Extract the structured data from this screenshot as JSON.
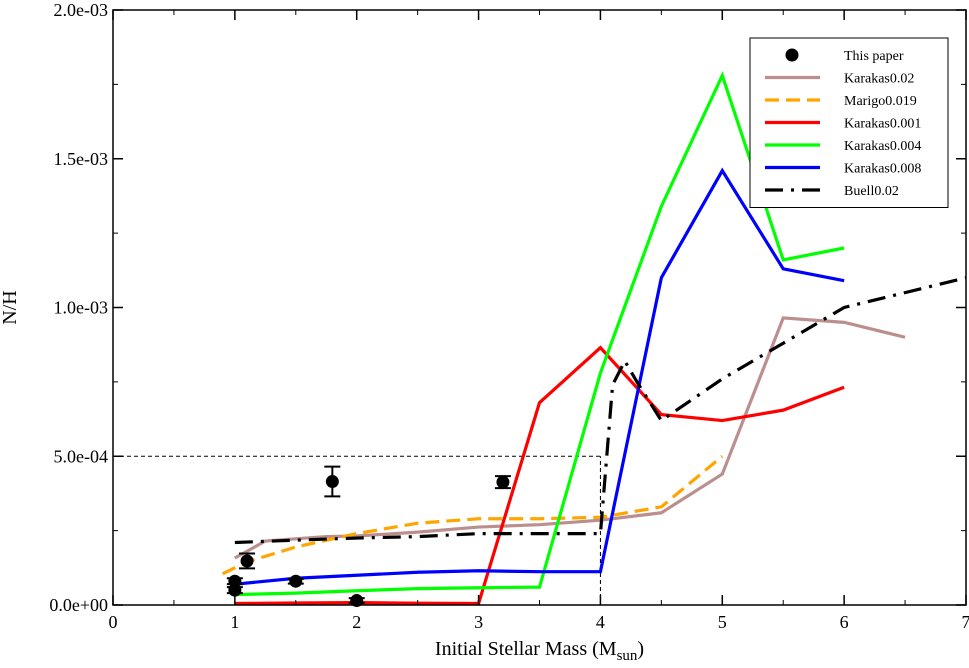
{
  "chart_data": {
    "type": "line",
    "xlabel": "Initial Stellar Mass (M",
    "xlabel_sub": "sun",
    "xlabel_end": ")",
    "ylabel": "N/H",
    "xlim": [
      0,
      7
    ],
    "ylim": [
      0,
      0.002
    ],
    "x_ticks": [
      0,
      1,
      2,
      3,
      4,
      5,
      6,
      7
    ],
    "x_tick_labels": [
      "0",
      "1",
      "2",
      "3",
      "4",
      "5",
      "6",
      "7"
    ],
    "y_ticks": [
      0,
      0.0005,
      0.001,
      0.0015,
      0.002
    ],
    "y_tick_labels": [
      "0.0e+00",
      "5.0e-04",
      "1.0e-03",
      "1.5e-03",
      "2.0e-03"
    ],
    "grid": false,
    "legend_position": "top-right",
    "reference_lines": [
      {
        "type": "horizontal",
        "y": 0.0005,
        "x_from": 0,
        "x_to": 4
      },
      {
        "type": "vertical",
        "x": 4,
        "y_from": 0,
        "y_to": 0.0005
      }
    ],
    "series": [
      {
        "name": "This paper",
        "kind": "points",
        "color": "#000000",
        "points": [
          {
            "x": 1.0,
            "y": 5e-05,
            "err": 1e-05
          },
          {
            "x": 1.0,
            "y": 8e-05,
            "err": 1e-05
          },
          {
            "x": 1.1,
            "y": 0.000148,
            "err": 2.5e-05
          },
          {
            "x": 1.5,
            "y": 8e-05,
            "err": 8e-06
          },
          {
            "x": 1.8,
            "y": 0.000415,
            "err": 5e-05
          },
          {
            "x": 2.0,
            "y": 1.5e-05,
            "err": 8e-06
          },
          {
            "x": 3.2,
            "y": 0.000413,
            "err": 2e-05
          }
        ]
      },
      {
        "name": "Karakas0.02",
        "kind": "line",
        "color": "#bc8f8f",
        "dash": "solid",
        "x": [
          1.0,
          1.25,
          1.75,
          2.0,
          2.5,
          3.0,
          3.5,
          4.0,
          4.5,
          5.0,
          5.5,
          6.0,
          6.5
        ],
        "y": [
          0.000158,
          0.000215,
          0.00023,
          0.000232,
          0.000245,
          0.000262,
          0.00027,
          0.000285,
          0.00031,
          0.00044,
          0.000965,
          0.00095,
          0.0009
        ]
      },
      {
        "name": "Marigo0.019",
        "kind": "line",
        "color": "#ffa500",
        "dash": "dash",
        "x": [
          0.9,
          1.1,
          1.5,
          2.0,
          2.5,
          3.0,
          3.5,
          4.0,
          4.5,
          5.0
        ],
        "y": [
          0.000105,
          0.000145,
          0.000195,
          0.00024,
          0.000275,
          0.00029,
          0.00029,
          0.000295,
          0.00033,
          0.0005
        ]
      },
      {
        "name": "Karakas0.001",
        "kind": "line",
        "color": "#ff0000",
        "dash": "solid",
        "x": [
          1.0,
          1.5,
          2.0,
          2.5,
          3.0,
          3.5,
          4.0,
          4.5,
          5.0,
          5.5,
          6.0
        ],
        "y": [
          5e-06,
          7e-06,
          8e-06,
          6e-06,
          5e-06,
          0.00068,
          0.000865,
          0.00064,
          0.00062,
          0.000655,
          0.000732
        ]
      },
      {
        "name": "Karakas0.004",
        "kind": "line",
        "color": "#00ff00",
        "dash": "solid",
        "x": [
          1.0,
          1.5,
          2.0,
          2.5,
          3.0,
          3.5,
          4.0,
          4.5,
          5.0,
          5.5,
          6.0
        ],
        "y": [
          3.5e-05,
          4e-05,
          4.8e-05,
          5.5e-05,
          5.8e-05,
          6e-05,
          0.00078,
          0.00134,
          0.00178,
          0.00116,
          0.0012
        ]
      },
      {
        "name": "Karakas0.008",
        "kind": "line",
        "color": "#0000ff",
        "dash": "solid",
        "x": [
          1.0,
          1.5,
          2.0,
          2.5,
          3.0,
          3.5,
          4.0,
          4.5,
          5.0,
          5.5,
          6.0
        ],
        "y": [
          7e-05,
          9e-05,
          0.0001,
          0.00011,
          0.000115,
          0.000112,
          0.000112,
          0.0011,
          0.00146,
          0.00113,
          0.00109
        ]
      },
      {
        "name": "Buell0.02",
        "kind": "line",
        "color": "#000000",
        "dash": "dashdot",
        "x": [
          1.0,
          1.5,
          2.0,
          2.5,
          3.0,
          3.5,
          4.0,
          4.1,
          4.2,
          4.3,
          4.5,
          5.0,
          5.5,
          6.0,
          6.5,
          7.0
        ],
        "y": [
          0.00021,
          0.000218,
          0.000225,
          0.00023,
          0.00024,
          0.00024,
          0.00024,
          0.00074,
          0.00082,
          0.00075,
          0.00062,
          0.00076,
          0.00088,
          0.001,
          0.00105,
          0.0011
        ]
      }
    ]
  }
}
